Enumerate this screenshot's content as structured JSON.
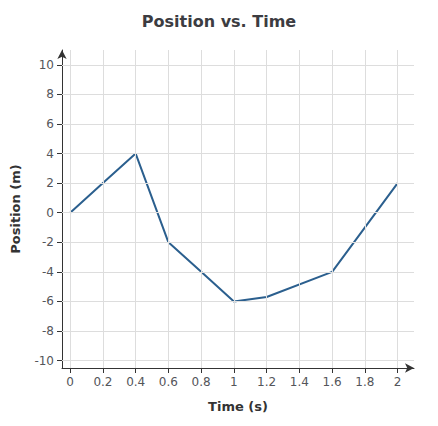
{
  "chart_data": {
    "type": "line",
    "title": "Position vs. Time",
    "xlabel": "Time (s)",
    "ylabel": "Position (m)",
    "x": [
      0,
      0.2,
      0.4,
      0.6,
      0.8,
      1.0,
      1.2,
      1.6,
      2.0
    ],
    "values": [
      0,
      2,
      4,
      -2,
      -4,
      -6,
      -5.7,
      -4,
      2
    ],
    "color": "#2b5f8e",
    "xlim": [
      -0.05,
      2.1
    ],
    "ylim": [
      -10.5,
      11.0
    ],
    "xticks": [
      0,
      0.2,
      0.4,
      0.6,
      0.8,
      1,
      1.2,
      1.4,
      1.6,
      1.8,
      2
    ],
    "yticks": [
      -10,
      -8,
      -6,
      -4,
      -2,
      0,
      2,
      4,
      6,
      8,
      10
    ],
    "grid": true
  }
}
